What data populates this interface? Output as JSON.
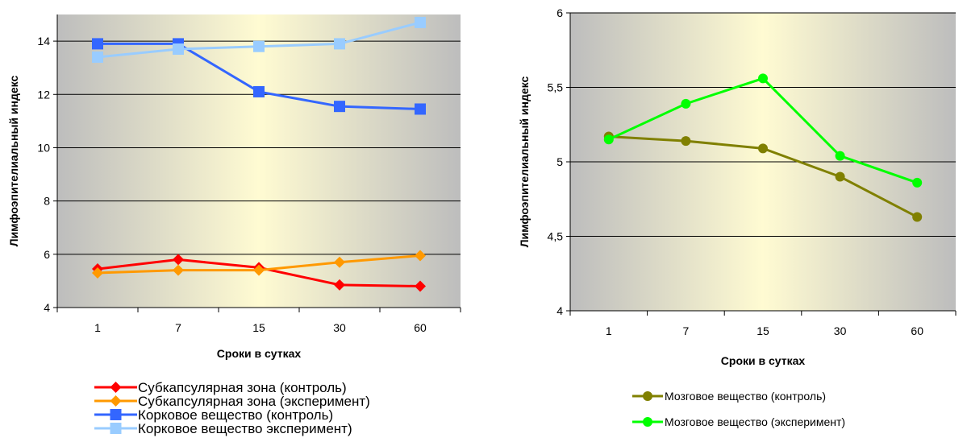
{
  "chart_data": [
    {
      "type": "line",
      "categories": [
        "1",
        "7",
        "15",
        "30",
        "60"
      ],
      "xlabel": "Сроки в сутках",
      "ylabel": "Лимфоэпителиальный индекс",
      "ylim": [
        4,
        15
      ],
      "yticks": [
        "4",
        "6",
        "8",
        "10",
        "12",
        "14"
      ],
      "grid": true,
      "legend_position": "bottom",
      "series": [
        {
          "name": "Субкапсулярная зона (контроль)",
          "values": [
            5.45,
            5.8,
            5.5,
            4.85,
            4.8
          ],
          "color": "#ff0000",
          "marker": "diamond"
        },
        {
          "name": "Субкапсулярная зона (эксперимент)",
          "values": [
            5.3,
            5.4,
            5.4,
            5.7,
            5.95
          ],
          "color": "#ff9900",
          "marker": "diamond"
        },
        {
          "name": "Корковое вещество (контроль)",
          "values": [
            13.9,
            13.9,
            12.1,
            11.55,
            11.45
          ],
          "color": "#3366ff",
          "marker": "square"
        },
        {
          "name": "Корковое вещество эксперимент)",
          "values": [
            13.4,
            13.7,
            13.8,
            13.9,
            14.7
          ],
          "color": "#99ccff",
          "marker": "square"
        }
      ]
    },
    {
      "type": "line",
      "categories": [
        "1",
        "7",
        "15",
        "30",
        "60"
      ],
      "xlabel": "Сроки в сутках",
      "ylabel": "Лимфоэпителиальный индекс",
      "ylim": [
        4,
        6
      ],
      "yticks": [
        "4",
        "4,5",
        "5",
        "5,5",
        "6"
      ],
      "grid": true,
      "legend_position": "bottom",
      "series": [
        {
          "name": "Мозговое вещество (контроль)",
          "values": [
            5.17,
            5.14,
            5.09,
            4.9,
            4.63
          ],
          "color": "#808000",
          "marker": "circle"
        },
        {
          "name": "Мозговое вещество (эксперимент)",
          "values": [
            5.15,
            5.39,
            5.56,
            5.04,
            4.86
          ],
          "color": "#00ff00",
          "marker": "circle"
        }
      ]
    }
  ]
}
